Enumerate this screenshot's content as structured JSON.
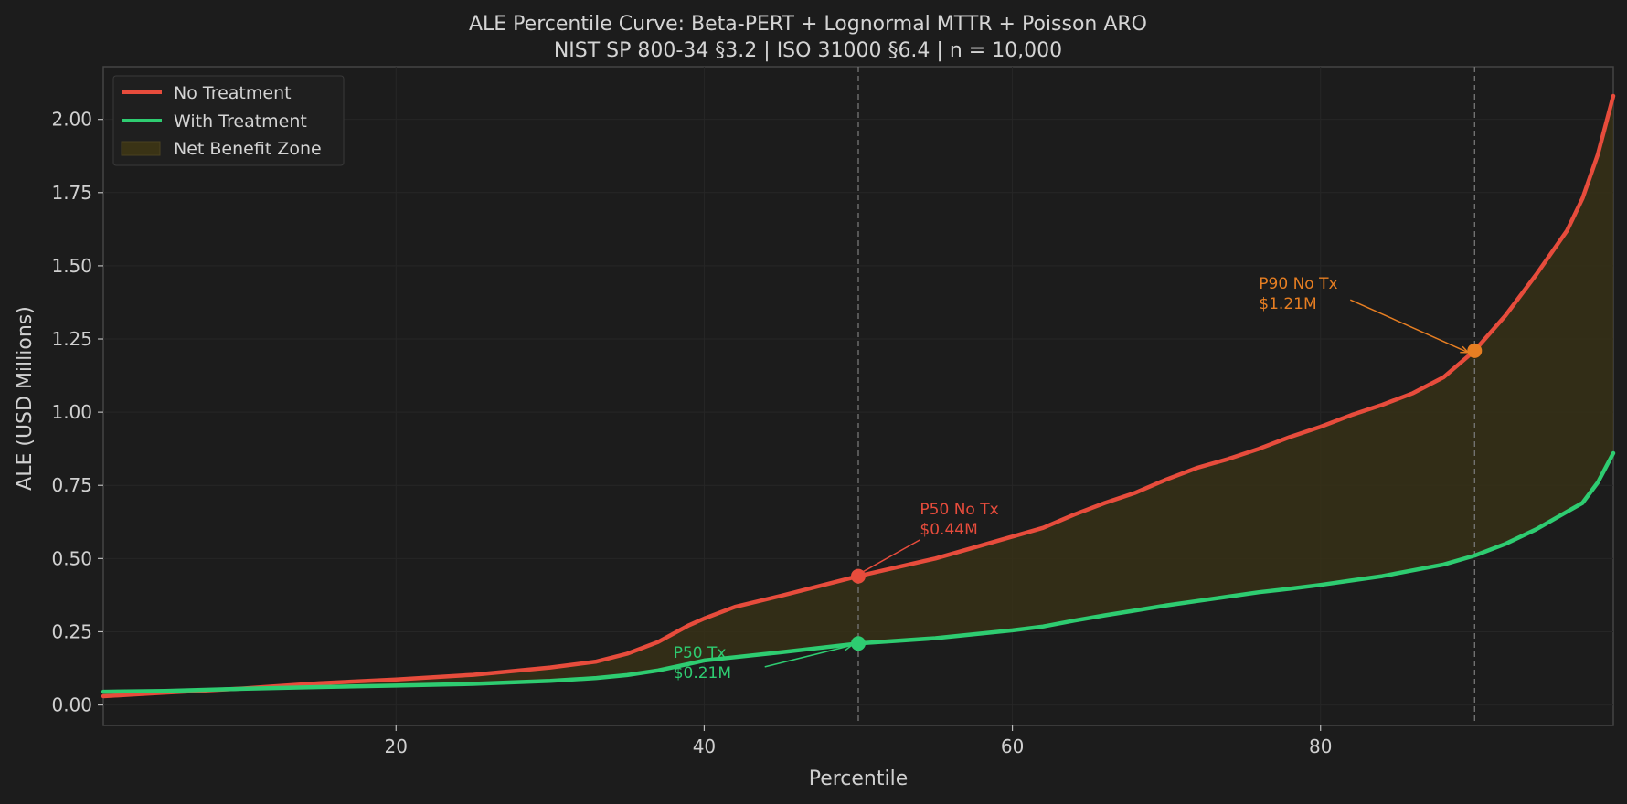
{
  "chart_data": {
    "type": "line",
    "title": "ALE Percentile Curve: Beta-PERT + Lognormal MTTR + Poisson ARO",
    "subtitle": "NIST SP 800-34 §3.2 | ISO 31000 §6.4 | n = 10,000",
    "xlabel": "Percentile",
    "ylabel": "ALE (USD Millions)",
    "xlim": [
      1,
      99
    ],
    "ylim": [
      -0.07,
      2.18
    ],
    "x_ticks": [
      20,
      40,
      60,
      80
    ],
    "y_ticks": [
      0.0,
      0.25,
      0.5,
      0.75,
      1.0,
      1.25,
      1.5,
      1.75,
      2.0
    ],
    "x_tick_labels": [
      "20",
      "40",
      "60",
      "80"
    ],
    "y_tick_labels": [
      "0.00",
      "0.25",
      "0.50",
      "0.75",
      "1.00",
      "1.25",
      "1.50",
      "1.75",
      "2.00"
    ],
    "grid": true,
    "legend_position": "top-left",
    "x": [
      1,
      5,
      10,
      15,
      20,
      25,
      30,
      33,
      35,
      37,
      39,
      40,
      42,
      45,
      50,
      55,
      60,
      62,
      64,
      66,
      68,
      70,
      72,
      74,
      76,
      78,
      80,
      82,
      84,
      86,
      88,
      90,
      92,
      94,
      96,
      97,
      98,
      99
    ],
    "series": [
      {
        "name": "No Treatment",
        "color": "#e74c3c",
        "values": [
          0.03,
          0.042,
          0.056,
          0.074,
          0.087,
          0.103,
          0.128,
          0.148,
          0.175,
          0.215,
          0.272,
          0.295,
          0.335,
          0.373,
          0.44,
          0.5,
          0.575,
          0.605,
          0.65,
          0.69,
          0.725,
          0.77,
          0.81,
          0.84,
          0.875,
          0.915,
          0.95,
          0.99,
          1.025,
          1.065,
          1.12,
          1.21,
          1.33,
          1.47,
          1.62,
          1.73,
          1.88,
          2.08
        ]
      },
      {
        "name": "With Treatment",
        "color": "#2ecc71",
        "values": [
          0.045,
          0.048,
          0.055,
          0.061,
          0.066,
          0.072,
          0.082,
          0.092,
          0.102,
          0.118,
          0.14,
          0.152,
          0.163,
          0.18,
          0.21,
          0.228,
          0.255,
          0.268,
          0.288,
          0.306,
          0.323,
          0.34,
          0.355,
          0.37,
          0.385,
          0.397,
          0.41,
          0.425,
          0.44,
          0.46,
          0.48,
          0.51,
          0.55,
          0.6,
          0.66,
          0.69,
          0.76,
          0.86
        ]
      }
    ],
    "fill_between": {
      "name": "Net Benefit Zone",
      "color": "#3a3315"
    },
    "vlines": [
      50,
      90
    ],
    "markers": [
      {
        "x": 50,
        "y": 0.44,
        "color": "#e74c3c"
      },
      {
        "x": 50,
        "y": 0.21,
        "color": "#2ecc71"
      },
      {
        "x": 90,
        "y": 1.21,
        "color": "#e67e22"
      }
    ],
    "annotations": [
      {
        "line1": "P50 No Tx",
        "line2": "$0.44M",
        "color": "#e74c3c",
        "point": [
          50,
          0.44
        ],
        "text_at": [
          54,
          0.62
        ]
      },
      {
        "line1": "P50 Tx",
        "line2": "$0.21M",
        "color": "#2ecc71",
        "point": [
          50,
          0.21
        ],
        "text_at": [
          38,
          0.13
        ]
      },
      {
        "line1": "P90 No Tx",
        "line2": "$1.21M",
        "color": "#e67e22",
        "point": [
          90,
          1.21
        ],
        "text_at": [
          76,
          1.39
        ]
      }
    ]
  }
}
